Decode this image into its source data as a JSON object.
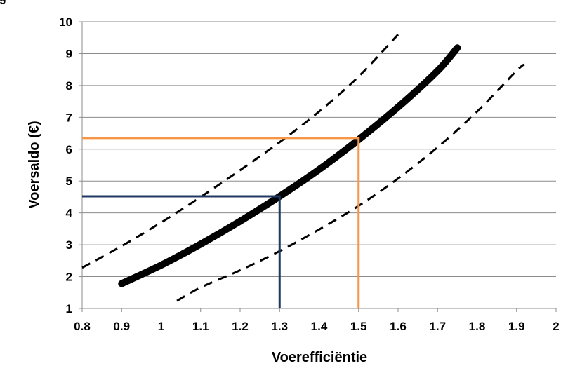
{
  "caption_fragment": "g",
  "chart_data": {
    "type": "line",
    "xlabel": "Voerefficiëntie",
    "ylabel": "Voersaldo  (€)",
    "xlim": [
      0.8,
      2.0
    ],
    "ylim": [
      1,
      10
    ],
    "x_ticks": [
      "0.8",
      "0.9",
      "1",
      "1.1",
      "1.2",
      "1.3",
      "1.4",
      "1.5",
      "1.6",
      "1.7",
      "1.8",
      "1.9",
      "2"
    ],
    "y_ticks": [
      "1",
      "2",
      "3",
      "4",
      "5",
      "6",
      "7",
      "8",
      "9",
      "10"
    ],
    "grid": "horizontal",
    "series": [
      {
        "style": "solid-thick",
        "color": "#000000",
        "points": [
          [
            0.9,
            1.78
          ],
          [
            1.0,
            2.36
          ],
          [
            1.1,
            3.02
          ],
          [
            1.2,
            3.74
          ],
          [
            1.3,
            4.52
          ],
          [
            1.4,
            5.36
          ],
          [
            1.5,
            6.3
          ],
          [
            1.6,
            7.32
          ],
          [
            1.7,
            8.46
          ],
          [
            1.75,
            9.18
          ]
        ]
      },
      {
        "style": "dashed",
        "color": "#000000",
        "points": [
          [
            0.8,
            2.28
          ],
          [
            0.9,
            2.96
          ],
          [
            1.0,
            3.7
          ],
          [
            1.1,
            4.5
          ],
          [
            1.2,
            5.34
          ],
          [
            1.3,
            6.22
          ],
          [
            1.4,
            7.18
          ],
          [
            1.5,
            8.28
          ],
          [
            1.6,
            9.6
          ]
        ]
      },
      {
        "style": "dashed",
        "color": "#000000",
        "points": [
          [
            1.04,
            1.24
          ],
          [
            1.1,
            1.66
          ],
          [
            1.2,
            2.2
          ],
          [
            1.3,
            2.8
          ],
          [
            1.4,
            3.48
          ],
          [
            1.5,
            4.22
          ],
          [
            1.6,
            5.08
          ],
          [
            1.7,
            6.06
          ],
          [
            1.8,
            7.18
          ],
          [
            1.9,
            8.46
          ],
          [
            1.92,
            8.66
          ]
        ]
      }
    ],
    "reference_lines": [
      {
        "color": "#1f3864",
        "x": 1.3,
        "y": 4.52
      },
      {
        "color": "#f79646",
        "x": 1.5,
        "y": 6.35
      }
    ]
  }
}
